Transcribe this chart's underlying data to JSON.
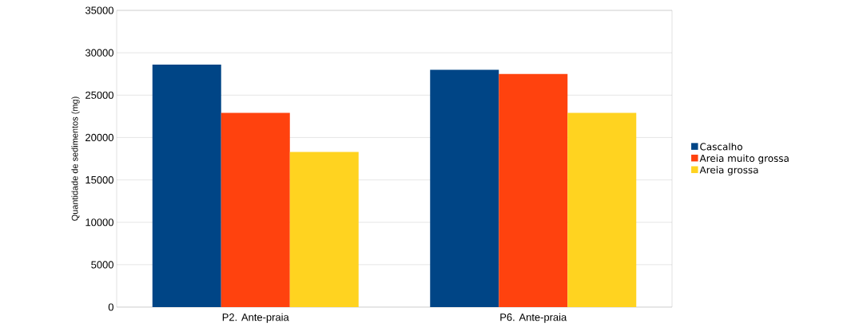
{
  "chart_data": {
    "type": "bar",
    "ylabel": "Quantidade de sedimentos (mg)",
    "categories": [
      "P2. Ante-praia",
      "P6. Ante-praia"
    ],
    "series": [
      {
        "name": "Cascalho",
        "color": "#004586",
        "values": [
          28600,
          28000
        ]
      },
      {
        "name": "Areia muito grossa",
        "color": "#ff420e",
        "values": [
          22900,
          27500
        ]
      },
      {
        "name": "Areia grossa",
        "color": "#ffd320",
        "values": [
          18300,
          22900
        ]
      }
    ],
    "ylim": [
      0,
      35000
    ],
    "yticks": [
      0,
      5000,
      10000,
      15000,
      20000,
      25000,
      30000,
      35000
    ],
    "grid": "y",
    "legend": "right"
  }
}
